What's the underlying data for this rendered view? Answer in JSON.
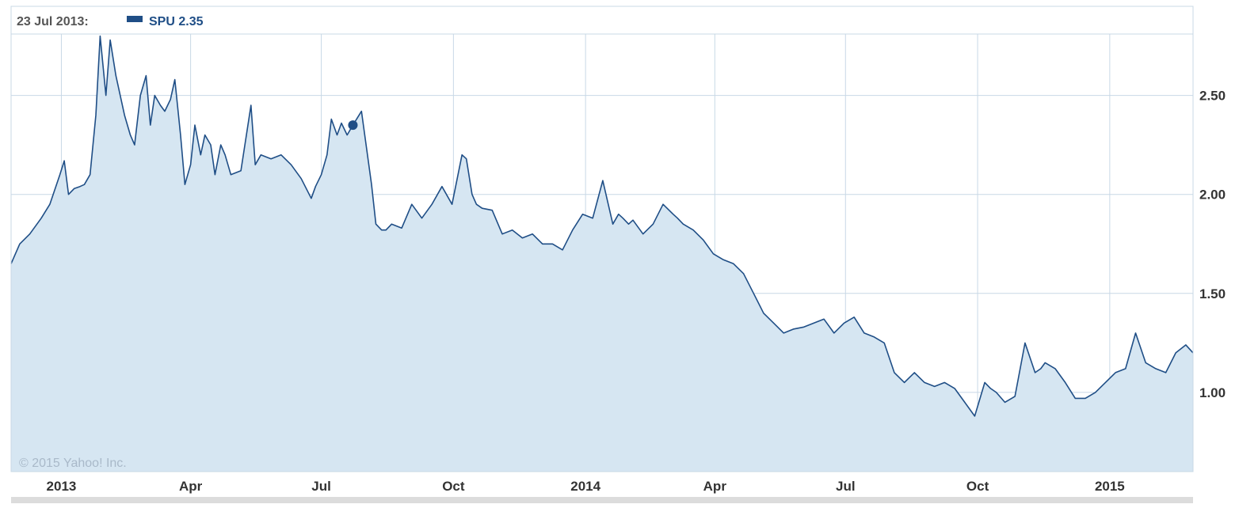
{
  "legend": {
    "date": "23 Jul 2013:",
    "series_text": "SPU 2.35"
  },
  "credit": "© 2015 Yahoo! Inc.",
  "colors": {
    "line": "#1f4e86",
    "area": "#d6e6f2",
    "grid": "#c8d8e6",
    "axis_text": "#333333"
  },
  "chart_data": {
    "type": "area",
    "xlabel": "",
    "ylabel": "",
    "x_ticks": [
      "2013",
      "Apr",
      "Jul",
      "Oct",
      "2014",
      "Apr",
      "Jul",
      "Oct",
      "2015"
    ],
    "y_ticks": [
      "1.00",
      "1.50",
      "2.00",
      "2.50"
    ],
    "xlim": [
      "2012-11-27",
      "2015-02-28"
    ],
    "ylim": [
      0.6,
      2.95
    ],
    "grid": true,
    "highlight": {
      "date": "2013-07-23",
      "value": 2.35
    },
    "series": [
      {
        "name": "SPU",
        "x": [
          "2012-11-27",
          "2012-12-03",
          "2012-12-10",
          "2012-12-18",
          "2012-12-24",
          "2012-12-31",
          "2013-01-03",
          "2013-01-06",
          "2013-01-10",
          "2013-01-14",
          "2013-01-17",
          "2013-01-21",
          "2013-01-25",
          "2013-01-28",
          "2013-02-01",
          "2013-02-04",
          "2013-02-08",
          "2013-02-14",
          "2013-02-18",
          "2013-02-21",
          "2013-02-25",
          "2013-03-01",
          "2013-03-04",
          "2013-03-07",
          "2013-03-11",
          "2013-03-14",
          "2013-03-18",
          "2013-03-21",
          "2013-03-25",
          "2013-03-28",
          "2013-04-01",
          "2013-04-04",
          "2013-04-08",
          "2013-04-11",
          "2013-04-15",
          "2013-04-18",
          "2013-04-22",
          "2013-04-25",
          "2013-04-29",
          "2013-05-06",
          "2013-05-13",
          "2013-05-16",
          "2013-05-20",
          "2013-05-27",
          "2013-06-03",
          "2013-06-10",
          "2013-06-17",
          "2013-06-24",
          "2013-06-27",
          "2013-07-01",
          "2013-07-05",
          "2013-07-08",
          "2013-07-12",
          "2013-07-15",
          "2013-07-19",
          "2013-07-23",
          "2013-07-29",
          "2013-08-05",
          "2013-08-08",
          "2013-08-12",
          "2013-08-15",
          "2013-08-19",
          "2013-08-26",
          "2013-09-02",
          "2013-09-09",
          "2013-09-16",
          "2013-09-23",
          "2013-09-30",
          "2013-10-07",
          "2013-10-10",
          "2013-10-14",
          "2013-10-17",
          "2013-10-21",
          "2013-10-28",
          "2013-11-04",
          "2013-11-11",
          "2013-11-18",
          "2013-11-25",
          "2013-12-02",
          "2013-12-09",
          "2013-12-16",
          "2013-12-23",
          "2013-12-30",
          "2014-01-06",
          "2014-01-13",
          "2014-01-20",
          "2014-01-24",
          "2014-01-27",
          "2014-01-31",
          "2014-02-03",
          "2014-02-10",
          "2014-02-17",
          "2014-02-24",
          "2014-03-03",
          "2014-03-06",
          "2014-03-10",
          "2014-03-17",
          "2014-03-24",
          "2014-03-31",
          "2014-04-07",
          "2014-04-14",
          "2014-04-21",
          "2014-04-28",
          "2014-05-05",
          "2014-05-12",
          "2014-05-19",
          "2014-05-26",
          "2014-06-02",
          "2014-06-09",
          "2014-06-16",
          "2014-06-23",
          "2014-06-30",
          "2014-07-07",
          "2014-07-14",
          "2014-07-21",
          "2014-07-28",
          "2014-08-04",
          "2014-08-11",
          "2014-08-18",
          "2014-08-25",
          "2014-09-01",
          "2014-09-08",
          "2014-09-15",
          "2014-09-22",
          "2014-09-29",
          "2014-10-06",
          "2014-10-10",
          "2014-10-14",
          "2014-10-20",
          "2014-10-27",
          "2014-11-03",
          "2014-11-10",
          "2014-11-14",
          "2014-11-17",
          "2014-11-24",
          "2014-12-01",
          "2014-12-08",
          "2014-12-15",
          "2014-12-22",
          "2014-12-29",
          "2015-01-05",
          "2015-01-12",
          "2015-01-19",
          "2015-01-26",
          "2015-02-02",
          "2015-02-09",
          "2015-02-16",
          "2015-02-23",
          "2015-02-28"
        ],
        "values": [
          1.65,
          1.75,
          1.8,
          1.88,
          1.95,
          2.1,
          2.17,
          2.0,
          2.03,
          2.04,
          2.05,
          2.1,
          2.4,
          2.8,
          2.5,
          2.78,
          2.6,
          2.4,
          2.3,
          2.25,
          2.5,
          2.6,
          2.35,
          2.5,
          2.45,
          2.42,
          2.48,
          2.58,
          2.3,
          2.05,
          2.15,
          2.35,
          2.2,
          2.3,
          2.25,
          2.1,
          2.25,
          2.2,
          2.1,
          2.12,
          2.45,
          2.15,
          2.2,
          2.18,
          2.2,
          2.15,
          2.08,
          1.98,
          2.04,
          2.1,
          2.2,
          2.38,
          2.3,
          2.36,
          2.3,
          2.35,
          2.42,
          2.05,
          1.85,
          1.82,
          1.82,
          1.85,
          1.83,
          1.95,
          1.88,
          1.95,
          2.04,
          1.95,
          2.2,
          2.18,
          2.0,
          1.95,
          1.93,
          1.92,
          1.8,
          1.82,
          1.78,
          1.8,
          1.75,
          1.75,
          1.72,
          1.82,
          1.9,
          1.88,
          2.07,
          1.85,
          1.9,
          1.88,
          1.85,
          1.87,
          1.8,
          1.85,
          1.95,
          1.9,
          1.88,
          1.85,
          1.82,
          1.77,
          1.7,
          1.67,
          1.65,
          1.6,
          1.5,
          1.4,
          1.35,
          1.3,
          1.32,
          1.33,
          1.35,
          1.37,
          1.3,
          1.35,
          1.38,
          1.3,
          1.28,
          1.25,
          1.1,
          1.05,
          1.1,
          1.05,
          1.03,
          1.05,
          1.02,
          0.95,
          0.88,
          1.05,
          1.02,
          1.0,
          0.95,
          0.98,
          1.25,
          1.1,
          1.12,
          1.15,
          1.12,
          1.05,
          0.97,
          0.97,
          1.0,
          1.05,
          1.1,
          1.12,
          1.3,
          1.15,
          1.12,
          1.1,
          1.2,
          1.24,
          1.2
        ]
      }
    ]
  }
}
